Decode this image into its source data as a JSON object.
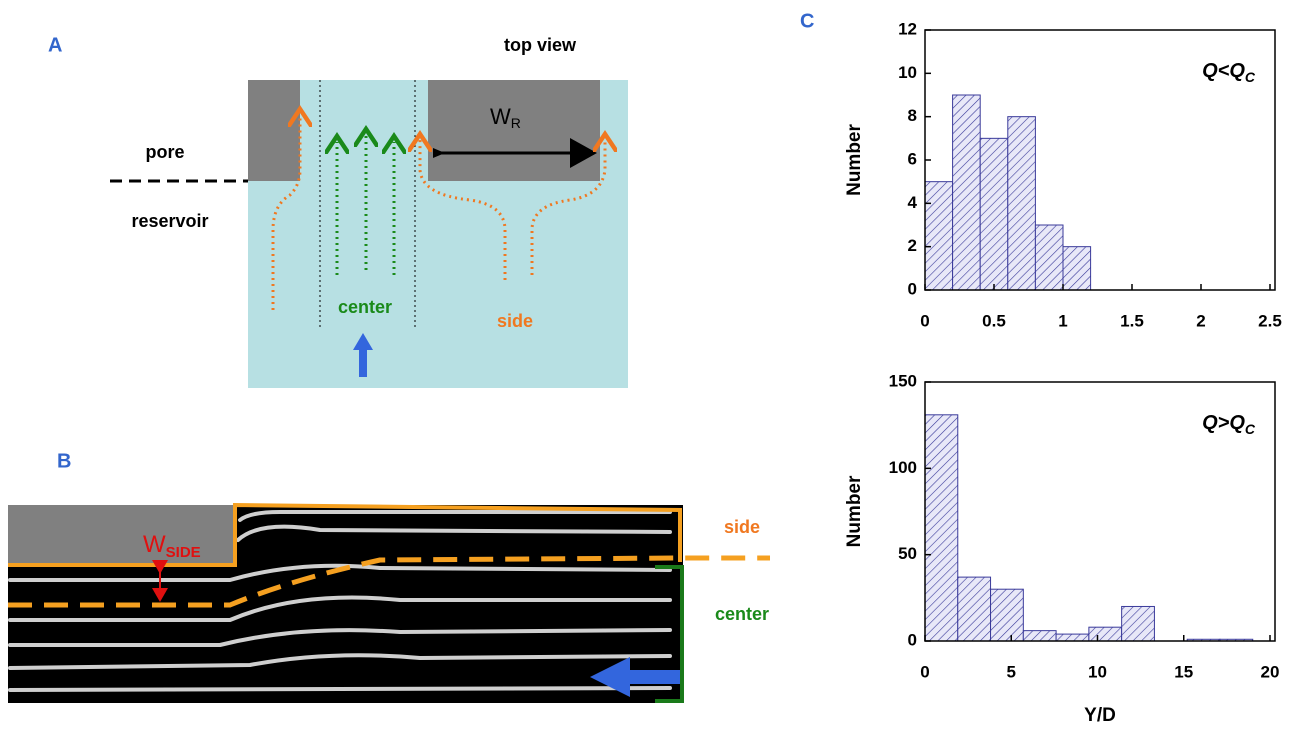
{
  "panel_a": {
    "label": "A",
    "title": "top view",
    "pore": "pore",
    "reservoir": "reservoir",
    "width": {
      "text": "W",
      "subscript": "R"
    },
    "center": "center",
    "side": "side"
  },
  "panel_b": {
    "label": "B",
    "width": {
      "text": "W",
      "subscript": "SIDE"
    },
    "side": "side",
    "center": "center"
  },
  "panel_c": {
    "label": "C"
  },
  "chart_data": [
    {
      "type": "histogram",
      "annotation": {
        "text": "Q<Q",
        "subscript": "C"
      },
      "y_label": "Number",
      "bins": [
        0,
        0.2,
        0.4,
        0.6,
        0.8,
        1.0,
        1.2
      ],
      "values": [
        5,
        9,
        7,
        8,
        3,
        2
      ],
      "color": "#3a3a9a",
      "xlim": [
        0,
        2.5
      ],
      "xticks": [
        0,
        0.5,
        1,
        1.5,
        2,
        2.5
      ],
      "ylim": [
        0,
        12
      ],
      "yticks": [
        0,
        2,
        4,
        6,
        8,
        10,
        12
      ]
    },
    {
      "type": "histogram",
      "annotation": {
        "text": "Q>Q",
        "subscript": "C"
      },
      "y_label": "Number",
      "x_label": "Y/D",
      "bins": [
        0,
        1.9,
        3.8,
        5.7,
        7.6,
        9.5,
        11.4,
        13.3,
        15.2,
        17.1,
        19
      ],
      "values": [
        131,
        37,
        30,
        6,
        4,
        8,
        20,
        0,
        1,
        1
      ],
      "color": "#3a3a9a",
      "xlim": [
        0,
        20
      ],
      "xticks": [
        0,
        5,
        10,
        15,
        20
      ],
      "ylim": [
        0,
        150
      ],
      "yticks": [
        0,
        50,
        100,
        150
      ]
    }
  ]
}
